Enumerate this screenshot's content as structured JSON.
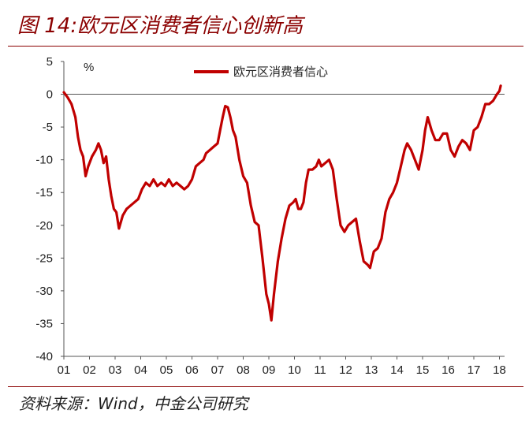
{
  "figure": {
    "title": "图 14:欧元区消费者信心创新高",
    "source": "资料来源：Wind，中金公司研究"
  },
  "chart_data": {
    "type": "line",
    "ylabel": "%",
    "ylim": [
      -40,
      5
    ],
    "yticks": [
      5,
      0,
      -5,
      -10,
      -15,
      -20,
      -25,
      -30,
      -35,
      -40
    ],
    "xlim": [
      2001,
      2018.2
    ],
    "xtick_labels": [
      "01",
      "02",
      "03",
      "04",
      "05",
      "06",
      "07",
      "08",
      "09",
      "10",
      "11",
      "12",
      "13",
      "14",
      "15",
      "16",
      "17",
      "18"
    ],
    "legend_position": "top-center",
    "grid": false,
    "series": [
      {
        "name": "欧元区消费者信心",
        "color": "#c00000",
        "points": [
          [
            2001.0,
            0.3
          ],
          [
            2001.15,
            -0.5
          ],
          [
            2001.3,
            -1.5
          ],
          [
            2001.45,
            -3.5
          ],
          [
            2001.55,
            -6.5
          ],
          [
            2001.65,
            -8.5
          ],
          [
            2001.75,
            -9.5
          ],
          [
            2001.85,
            -12.5
          ],
          [
            2001.95,
            -11.0
          ],
          [
            2002.1,
            -9.5
          ],
          [
            2002.25,
            -8.5
          ],
          [
            2002.35,
            -7.5
          ],
          [
            2002.45,
            -8.5
          ],
          [
            2002.55,
            -10.5
          ],
          [
            2002.65,
            -9.5
          ],
          [
            2002.75,
            -13.0
          ],
          [
            2002.85,
            -15.5
          ],
          [
            2002.95,
            -17.5
          ],
          [
            2003.05,
            -18.0
          ],
          [
            2003.15,
            -20.5
          ],
          [
            2003.3,
            -18.5
          ],
          [
            2003.45,
            -17.5
          ],
          [
            2003.6,
            -17.0
          ],
          [
            2003.75,
            -16.5
          ],
          [
            2003.9,
            -16.0
          ],
          [
            2004.05,
            -14.5
          ],
          [
            2004.2,
            -13.5
          ],
          [
            2004.35,
            -14.0
          ],
          [
            2004.5,
            -13.0
          ],
          [
            2004.65,
            -14.0
          ],
          [
            2004.8,
            -13.5
          ],
          [
            2004.95,
            -14.0
          ],
          [
            2005.1,
            -13.0
          ],
          [
            2005.25,
            -14.0
          ],
          [
            2005.4,
            -13.5
          ],
          [
            2005.55,
            -14.0
          ],
          [
            2005.7,
            -14.5
          ],
          [
            2005.85,
            -14.0
          ],
          [
            2006.0,
            -13.0
          ],
          [
            2006.15,
            -11.0
          ],
          [
            2006.3,
            -10.5
          ],
          [
            2006.45,
            -10.0
          ],
          [
            2006.55,
            -9.0
          ],
          [
            2006.7,
            -8.5
          ],
          [
            2006.85,
            -8.0
          ],
          [
            2007.0,
            -7.5
          ],
          [
            2007.1,
            -5.5
          ],
          [
            2007.2,
            -3.5
          ],
          [
            2007.3,
            -1.8
          ],
          [
            2007.4,
            -2.0
          ],
          [
            2007.5,
            -3.5
          ],
          [
            2007.6,
            -5.5
          ],
          [
            2007.7,
            -6.5
          ],
          [
            2007.85,
            -10.0
          ],
          [
            2008.0,
            -12.5
          ],
          [
            2008.15,
            -13.5
          ],
          [
            2008.3,
            -17.0
          ],
          [
            2008.45,
            -19.5
          ],
          [
            2008.6,
            -20.0
          ],
          [
            2008.75,
            -25.0
          ],
          [
            2008.9,
            -30.5
          ],
          [
            2009.0,
            -32.0
          ],
          [
            2009.1,
            -34.5
          ],
          [
            2009.2,
            -30.5
          ],
          [
            2009.35,
            -25.5
          ],
          [
            2009.5,
            -22.0
          ],
          [
            2009.65,
            -19.0
          ],
          [
            2009.8,
            -17.0
          ],
          [
            2009.95,
            -16.5
          ],
          [
            2010.05,
            -16.0
          ],
          [
            2010.15,
            -17.5
          ],
          [
            2010.25,
            -17.5
          ],
          [
            2010.35,
            -16.5
          ],
          [
            2010.45,
            -13.5
          ],
          [
            2010.55,
            -11.5
          ],
          [
            2010.7,
            -11.5
          ],
          [
            2010.85,
            -11.0
          ],
          [
            2010.95,
            -10.0
          ],
          [
            2011.05,
            -11.0
          ],
          [
            2011.2,
            -10.5
          ],
          [
            2011.35,
            -10.0
          ],
          [
            2011.5,
            -11.5
          ],
          [
            2011.65,
            -16.0
          ],
          [
            2011.8,
            -20.0
          ],
          [
            2011.95,
            -21.0
          ],
          [
            2012.1,
            -20.0
          ],
          [
            2012.25,
            -19.5
          ],
          [
            2012.4,
            -19.0
          ],
          [
            2012.55,
            -22.5
          ],
          [
            2012.7,
            -25.5
          ],
          [
            2012.85,
            -26.0
          ],
          [
            2012.95,
            -26.5
          ],
          [
            2013.1,
            -24.0
          ],
          [
            2013.25,
            -23.5
          ],
          [
            2013.4,
            -22.0
          ],
          [
            2013.55,
            -18.0
          ],
          [
            2013.7,
            -16.0
          ],
          [
            2013.85,
            -15.0
          ],
          [
            2014.0,
            -13.5
          ],
          [
            2014.15,
            -11.0
          ],
          [
            2014.3,
            -8.5
          ],
          [
            2014.4,
            -7.5
          ],
          [
            2014.55,
            -8.5
          ],
          [
            2014.7,
            -10.0
          ],
          [
            2014.85,
            -11.5
          ],
          [
            2015.0,
            -8.5
          ],
          [
            2015.1,
            -5.5
          ],
          [
            2015.2,
            -3.5
          ],
          [
            2015.35,
            -5.5
          ],
          [
            2015.5,
            -7.0
          ],
          [
            2015.65,
            -7.0
          ],
          [
            2015.8,
            -6.0
          ],
          [
            2015.95,
            -6.0
          ],
          [
            2016.1,
            -8.5
          ],
          [
            2016.25,
            -9.5
          ],
          [
            2016.4,
            -8.0
          ],
          [
            2016.55,
            -7.0
          ],
          [
            2016.7,
            -7.5
          ],
          [
            2016.85,
            -8.5
          ],
          [
            2017.0,
            -5.5
          ],
          [
            2017.15,
            -5.0
          ],
          [
            2017.3,
            -3.5
          ],
          [
            2017.45,
            -1.5
          ],
          [
            2017.6,
            -1.5
          ],
          [
            2017.75,
            -1.0
          ],
          [
            2017.9,
            0.0
          ],
          [
            2018.0,
            0.5
          ],
          [
            2018.05,
            1.3
          ]
        ]
      }
    ]
  }
}
